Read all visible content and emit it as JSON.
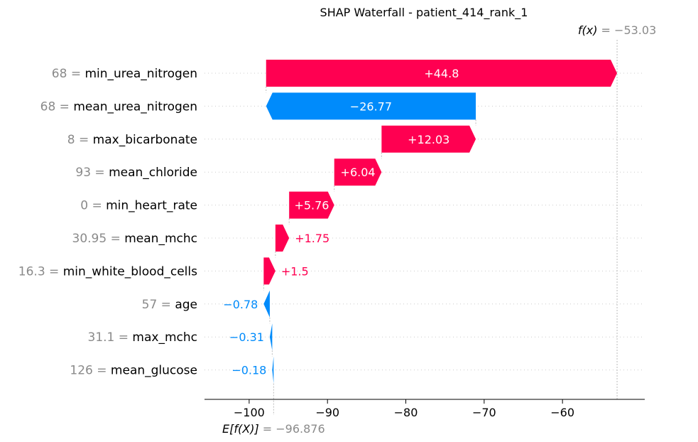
{
  "colors": {
    "positive": "#ff0051",
    "negative": "#008bfb",
    "label_gray": "#8a8a8a"
  },
  "chart_data": {
    "type": "waterfall",
    "title": "SHAP Waterfall - patient_414_rank_1",
    "base_value": -96.876,
    "base_value_label": "−096.876",
    "base_value_text": "−96.876",
    "output_value": -53.03,
    "output_value_text": "−53.03",
    "fx_label": "f(x)",
    "efx_label": "E[f(X)]",
    "xlim": [
      -105.7,
      -49.5
    ],
    "xticks": [
      -100,
      -90,
      -80,
      -70,
      -60
    ],
    "xtick_labels": [
      "−100",
      "−90",
      "−80",
      "−70",
      "−60"
    ],
    "grid": false,
    "features": [
      {
        "value": "68",
        "name": "min_urea_nitrogen",
        "shap": 44.8,
        "label": "+44.8"
      },
      {
        "value": "68",
        "name": "mean_urea_nitrogen",
        "shap": -26.77,
        "label": "−26.77"
      },
      {
        "value": "8",
        "name": "max_bicarbonate",
        "shap": 12.03,
        "label": "+12.03"
      },
      {
        "value": "93",
        "name": "mean_chloride",
        "shap": 6.04,
        "label": "+6.04"
      },
      {
        "value": "0",
        "name": "min_heart_rate",
        "shap": 5.76,
        "label": "+5.76"
      },
      {
        "value": "30.95",
        "name": "mean_mchc",
        "shap": 1.75,
        "label": "+1.75"
      },
      {
        "value": "16.3",
        "name": "min_white_blood_cells",
        "shap": 1.5,
        "label": "+1.5"
      },
      {
        "value": "57",
        "name": "age",
        "shap": -0.78,
        "label": "−0.78"
      },
      {
        "value": "31.1",
        "name": "max_mchc",
        "shap": -0.31,
        "label": "−0.31"
      },
      {
        "value": "126",
        "name": "mean_glucose",
        "shap": -0.18,
        "label": "−0.18"
      }
    ]
  }
}
